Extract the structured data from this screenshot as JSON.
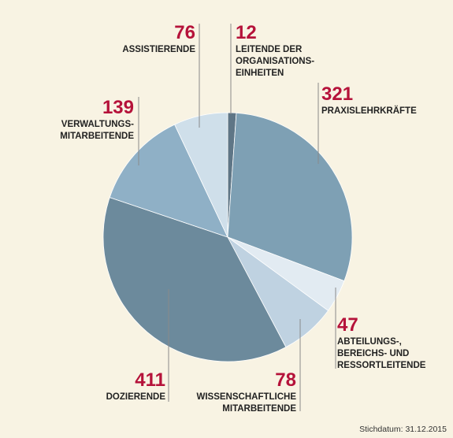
{
  "chart_data": {
    "type": "pie",
    "slices": [
      {
        "value": 12,
        "label": [
          "LEITENDE DER",
          "ORGANISATIONS-",
          "EINHEITEN"
        ],
        "color": "#5f7686"
      },
      {
        "value": 321,
        "label": [
          "PRAXISLEHRKRÄFTE"
        ],
        "color": "#7ea0b4"
      },
      {
        "value": 47,
        "label": [
          "ABTEILUNGS-,",
          "BEREICHS- UND",
          "RESSORTLEITENDE"
        ],
        "color": "#e2ebf2"
      },
      {
        "value": 78,
        "label": [
          "WISSENSCHAFTLICHE",
          "MITARBEITENDE"
        ],
        "color": "#bfd2e1"
      },
      {
        "value": 411,
        "label": [
          "DOZIERENDE"
        ],
        "color": "#6c8a9c"
      },
      {
        "value": 139,
        "label": [
          "VERWALTUNGS-",
          "MITARBEITENDE"
        ],
        "color": "#8fb0c6"
      },
      {
        "value": 76,
        "label": [
          "ASSISTIERENDE"
        ],
        "color": "#cfdfea"
      }
    ],
    "number_color": "#b5123a"
  },
  "footnote": "Stichdatum: 31.12.2015"
}
